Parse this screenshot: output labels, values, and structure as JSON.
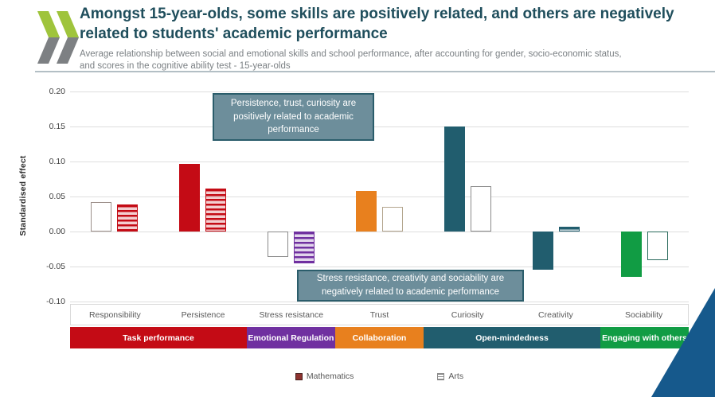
{
  "header": {
    "title": "Amongst 15-year-olds, some skills are positively related, and others are negatively related to students' academic performance",
    "subtitle": "Average relationship between social and emotional skills and school performance, after accounting for gender, socio-economic status, and scores in the cognitive ability test - 15-year-olds"
  },
  "chart_data": {
    "type": "bar",
    "ylabel": "Standardised effect",
    "ylim": [
      -0.1,
      0.2
    ],
    "yticks": [
      0.2,
      0.15,
      0.1,
      0.05,
      0.0,
      -0.05,
      -0.1
    ],
    "ytick_labels": [
      "0.20",
      "0.15",
      "0.10",
      "0.05",
      "0.00",
      "-0.05",
      "-0.10"
    ],
    "grid": "horizontal",
    "categories": [
      "Responsibility",
      "Persistence",
      "Stress resistance",
      "Trust",
      "Curiosity",
      "Creativity",
      "Sociability"
    ],
    "series": [
      {
        "name": "Mathematics",
        "values": [
          0.042,
          0.097,
          -0.036,
          0.058,
          0.15,
          -0.055,
          -0.065
        ],
        "styles": [
          "outline",
          "solid",
          "outline",
          "solid",
          "solid",
          "solid",
          "solid"
        ],
        "colors": [
          "#9c8f8a",
          "#c40b15",
          "#8a8a8a",
          "#e8801e",
          "#215d6e",
          "#215d6e",
          "#119c44"
        ]
      },
      {
        "name": "Arts",
        "values": [
          0.039,
          0.061,
          -0.046,
          0.035,
          0.065,
          0.007,
          -0.041
        ],
        "styles": [
          "striped",
          "striped",
          "striped",
          "outline",
          "outline",
          "striped",
          "outline"
        ],
        "colors": [
          "#c40b15",
          "#c40b15",
          "#7030a0",
          "#b3a58d",
          "#8a8a8a",
          "#215d6e",
          "#2a6b5d"
        ]
      }
    ],
    "skill_groups": [
      {
        "label": "Task performance",
        "span": 2,
        "color": "#c40b15"
      },
      {
        "label": "Emotional Regulation",
        "span": 1,
        "color": "#7030a0"
      },
      {
        "label": "Collaboration",
        "span": 1,
        "color": "#e8801e"
      },
      {
        "label": "Open-mindedness",
        "span": 2,
        "color": "#215d6e"
      },
      {
        "label": "Engaging with others",
        "span": 1,
        "color": "#119c44"
      }
    ],
    "annotations": [
      {
        "text": "Persistence, trust, curiosity are positively related to academic performance"
      },
      {
        "text": "Stress resistance, creativity and sociability are negatively related to academic performance"
      }
    ],
    "legend_position": "bottom"
  },
  "legend": {
    "items": [
      {
        "label": "Mathematics"
      },
      {
        "label": "Arts"
      }
    ]
  },
  "branding": {
    "logo_green": "#9fc43c",
    "logo_gray": "#7d8083",
    "corner_triangle_color": "#16598c"
  }
}
